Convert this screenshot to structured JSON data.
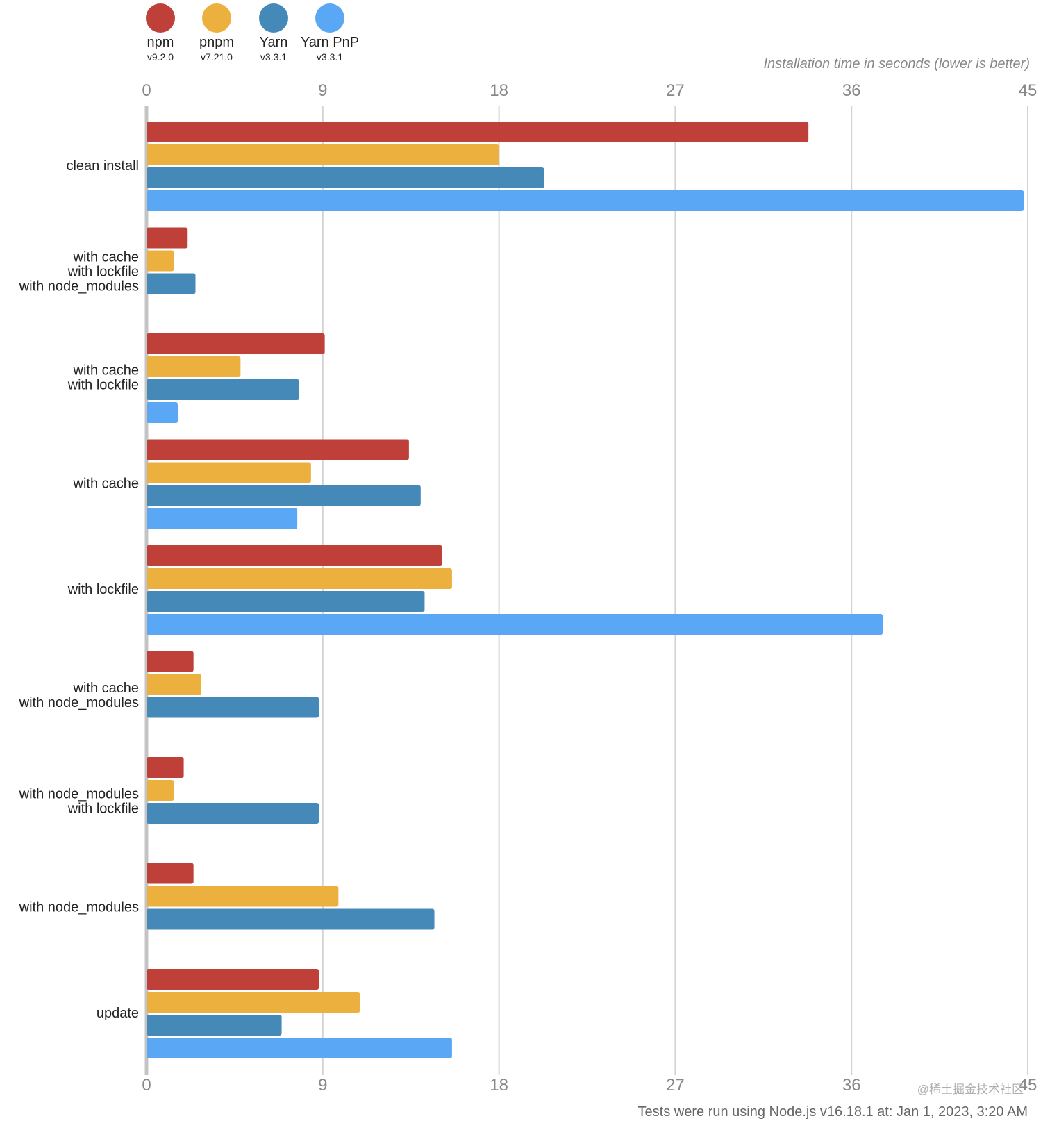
{
  "chart_data": {
    "type": "bar",
    "orientation": "horizontal",
    "xlabel": "Installation time in seconds (lower is better)",
    "xlim": [
      0,
      45
    ],
    "xticks": [
      0,
      9,
      18,
      27,
      36,
      45
    ],
    "grid": true,
    "legend_position": "top-left",
    "categories": [
      [
        "clean install"
      ],
      [
        "with cache",
        "with lockfile",
        "with node_modules"
      ],
      [
        "with cache",
        "with lockfile"
      ],
      [
        "with cache"
      ],
      [
        "with lockfile"
      ],
      [
        "with cache",
        "with node_modules"
      ],
      [
        "with node_modules",
        "with lockfile"
      ],
      [
        "with node_modules"
      ],
      [
        "update"
      ]
    ],
    "series": [
      {
        "name": "npm",
        "version": "v9.2.0",
        "color": "#bf4038",
        "values": [
          33.8,
          2.1,
          9.1,
          13.4,
          15.1,
          2.4,
          1.9,
          2.4,
          8.8
        ]
      },
      {
        "name": "pnpm",
        "version": "v7.21.0",
        "color": "#ecb03e",
        "values": [
          18.0,
          1.4,
          4.8,
          8.4,
          15.6,
          2.8,
          1.4,
          9.8,
          10.9
        ]
      },
      {
        "name": "Yarn",
        "version": "v3.3.1",
        "color": "#4589b9",
        "values": [
          20.3,
          2.5,
          7.8,
          14.0,
          14.2,
          8.8,
          8.8,
          14.7,
          6.9
        ]
      },
      {
        "name": "Yarn PnP",
        "version": "v3.3.1",
        "color": "#5aa7f6",
        "values": [
          44.8,
          null,
          1.6,
          7.7,
          37.6,
          null,
          null,
          null,
          15.6
        ]
      }
    ],
    "footer": "Tests were run using Node.js v16.18.1 at: Jan 1, 2023, 3:20 AM",
    "watermark": "@稀土掘金技术社区"
  }
}
